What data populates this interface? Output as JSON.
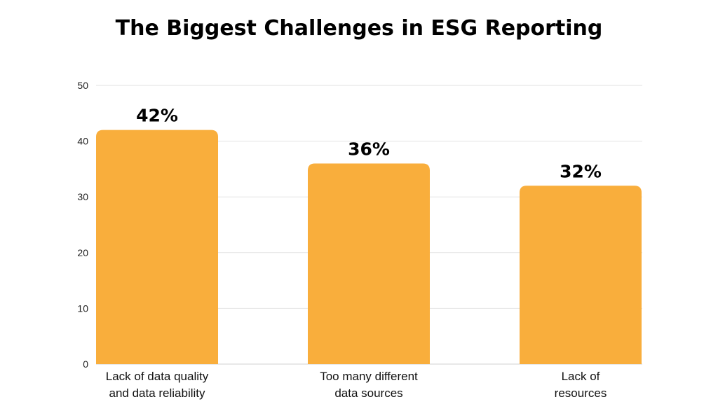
{
  "chart_data": {
    "type": "bar",
    "title": "The Biggest Challenges in ESG Reporting",
    "xlabel": "",
    "ylabel": "",
    "ylim": [
      0,
      50
    ],
    "yticks": [
      0,
      10,
      20,
      30,
      40,
      50
    ],
    "grid": true,
    "legend": "none",
    "bar_color": "#F9AE3C",
    "categories": [
      [
        "Lack of data quality",
        "and data reliability"
      ],
      [
        "Too many different",
        "data sources"
      ],
      [
        "Lack of",
        "resources"
      ]
    ],
    "values": [
      42,
      36,
      32
    ],
    "data_labels": [
      "42%",
      "36%",
      "32%"
    ]
  }
}
